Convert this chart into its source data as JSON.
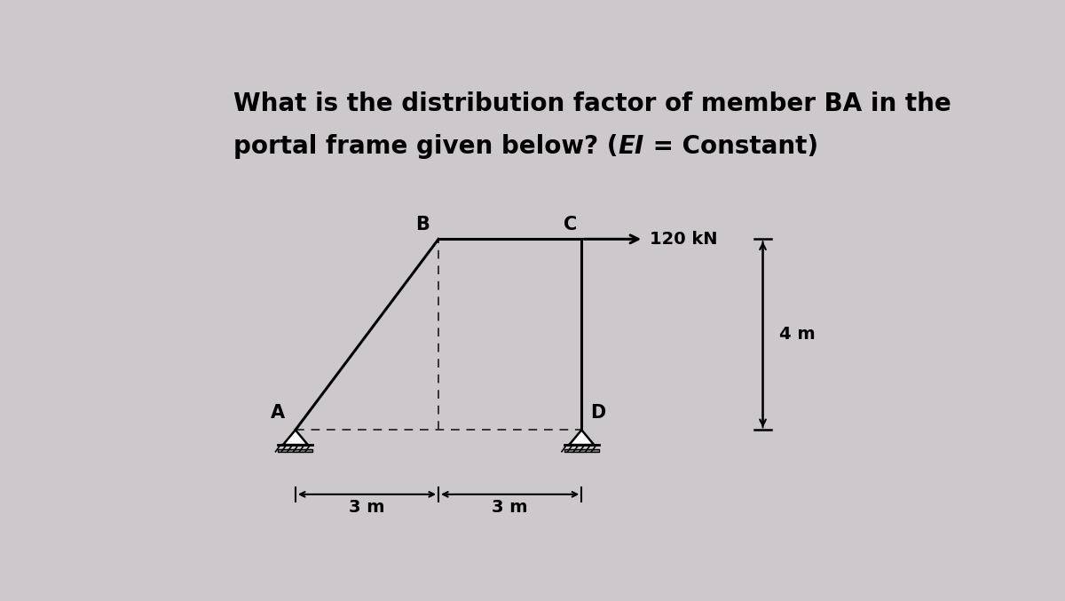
{
  "title_line1": "What is the distribution factor of member BA in the",
  "title_line2_pre": "portal frame given below? (",
  "title_line2_ei": "EI",
  "title_line2_post": " = Constant)",
  "bg_color": "#ccc8cc",
  "frame_color": "#000000",
  "dashed_color": "#333333",
  "force_label": "120 kN",
  "dim_3m_left": "3 m",
  "dim_3m_right": "3 m",
  "dim_4m": "4 m",
  "A": [
    0,
    0
  ],
  "B": [
    3,
    4
  ],
  "C": [
    6,
    4
  ],
  "D": [
    6,
    0
  ],
  "xlim": [
    -1.5,
    12.0
  ],
  "ylim": [
    -2.2,
    7.5
  ],
  "title_fontsize": 20,
  "label_fontsize": 15,
  "dim_fontsize": 14,
  "force_fontsize": 14
}
